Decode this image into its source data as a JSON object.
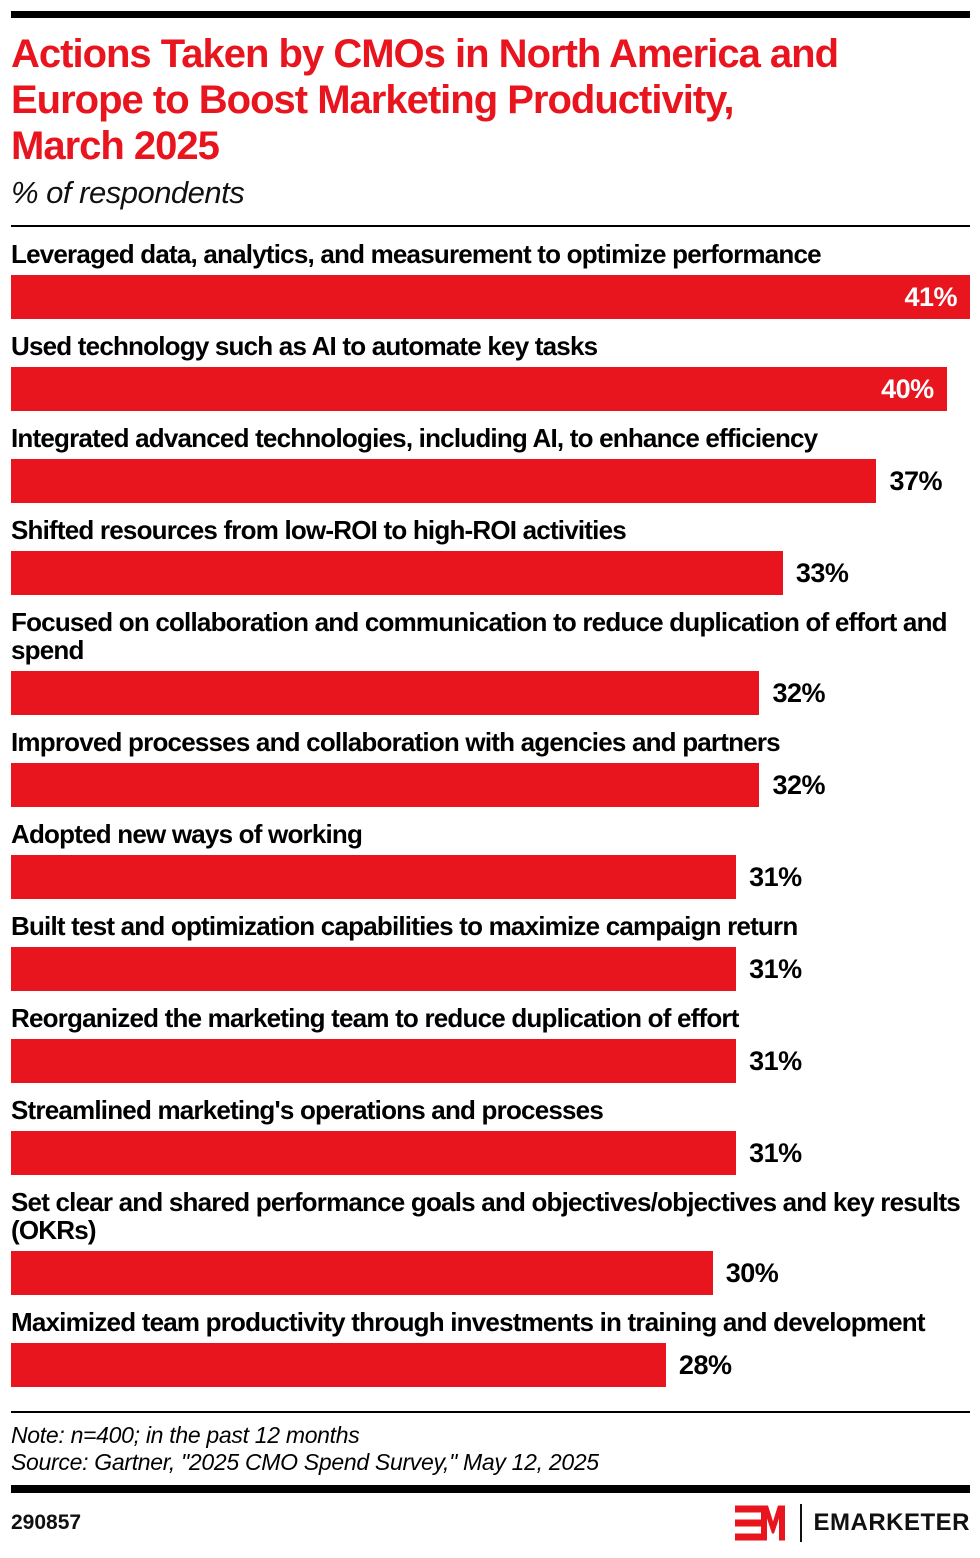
{
  "page": {
    "accent_red": "#E8141E",
    "black": "#000000",
    "background": "#FFFFFF"
  },
  "header": {
    "title_lines": [
      "Actions Taken by CMOs in North America and",
      "Europe to Boost Marketing Productivity,",
      "March 2025"
    ],
    "subtitle": "% of respondents"
  },
  "chart_data": {
    "type": "bar",
    "orientation": "horizontal",
    "unit": "%",
    "title": "Actions Taken by CMOs in North America and Europe to Boost Marketing Productivity, March 2025",
    "subtitle": "% of respondents",
    "xlim": [
      0,
      41
    ],
    "bar_color": "#E8141E",
    "grid": false,
    "legend": "none",
    "items": [
      {
        "label": "Leveraged data, analytics, and measurement to optimize performance",
        "value": 41,
        "value_label": "41%",
        "value_position": "inside"
      },
      {
        "label": "Used technology such as AI to automate key tasks",
        "value": 40,
        "value_label": "40%",
        "value_position": "inside"
      },
      {
        "label": "Integrated advanced technologies, including AI, to enhance efficiency",
        "value": 37,
        "value_label": "37%",
        "value_position": "outside"
      },
      {
        "label": "Shifted resources from low-ROI to high-ROI activities",
        "value": 33,
        "value_label": "33%",
        "value_position": "outside"
      },
      {
        "label": "Focused on collaboration and communication to reduce duplication of effort and spend",
        "value": 32,
        "value_label": "32%",
        "value_position": "outside"
      },
      {
        "label": "Improved processes and collaboration with agencies and partners",
        "value": 32,
        "value_label": "32%",
        "value_position": "outside"
      },
      {
        "label": "Adopted new ways of working",
        "value": 31,
        "value_label": "31%",
        "value_position": "outside"
      },
      {
        "label": "Built test and optimization capabilities to maximize campaign return",
        "value": 31,
        "value_label": "31%",
        "value_position": "outside"
      },
      {
        "label": "Reorganized the marketing team to reduce duplication of effort",
        "value": 31,
        "value_label": "31%",
        "value_position": "outside"
      },
      {
        "label": "Streamlined marketing's operations and processes",
        "value": 31,
        "value_label": "31%",
        "value_position": "outside"
      },
      {
        "label": "Set clear and shared performance goals and objectives/objectives and key results (OKRs)",
        "value": 30,
        "value_label": "30%",
        "value_position": "outside"
      },
      {
        "label": "Maximized team productivity through investments in training and development",
        "value": 28,
        "value_label": "28%",
        "value_position": "outside"
      }
    ]
  },
  "footer": {
    "note": "Note: n=400; in the past 12 months",
    "source": "Source: Gartner, \"2025 CMO Spend Survey,\" May 12, 2025",
    "chart_id": "290857",
    "brand": "EMARKETER"
  }
}
